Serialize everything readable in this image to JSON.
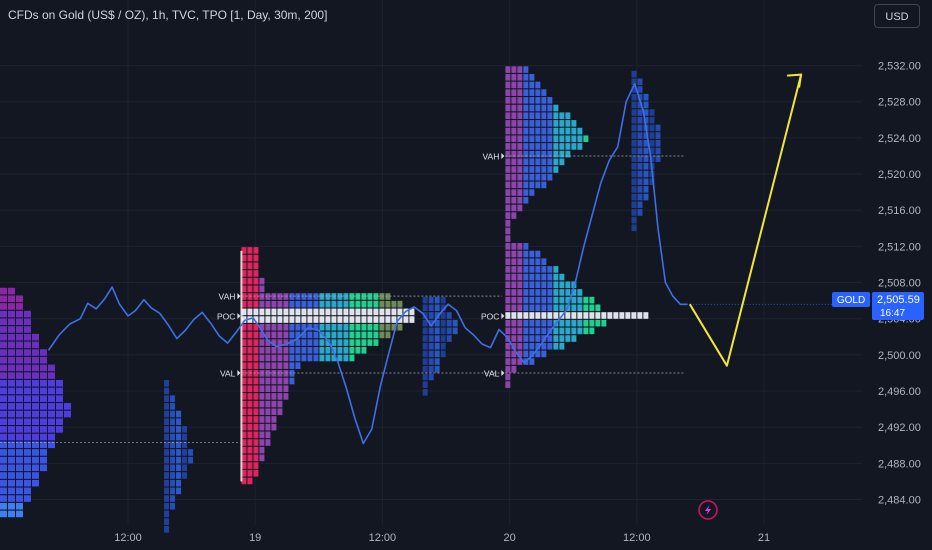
{
  "title": "CFDs on Gold (US$ / OZ), 1h, TVC, TPO [1, Day, 30m, 200]",
  "currency": "USD",
  "price_tag": {
    "symbol": "GOLD",
    "price": "2,505.59",
    "countdown": "16:47"
  },
  "colors": {
    "background": "#131722",
    "grid": "#1e222d",
    "price_line": "#3f6fe6",
    "projection": "#f0e63c",
    "poc_bar": "#e0e3eb",
    "tag_bg": "#2962ff",
    "axis_text": "#b2b5be"
  },
  "profile_labels": {
    "vah": "VAH",
    "poc": "POC",
    "val": "VAL"
  },
  "icons": [
    "lightning-logo-icon",
    "poc-arrow-icon"
  ],
  "chart_data": {
    "type": "line",
    "title": "CFDs on Gold (US$ / OZ)",
    "xlabel": "",
    "ylabel": "",
    "ylim": [
      2481.5,
      2534.5
    ],
    "yticks": [
      "2,532.00",
      "2,528.00",
      "2,524.00",
      "2,520.00",
      "2,516.00",
      "2,512.00",
      "2,508.00",
      "2,504.00",
      "2,500.00",
      "2,496.00",
      "2,492.00",
      "2,488.00",
      "2,484.00"
    ],
    "ytick_values": [
      2532,
      2528,
      2524,
      2520,
      2516,
      2512,
      2508,
      2504,
      2500,
      2496,
      2492,
      2488,
      2484
    ],
    "xticks": [
      "12:00",
      "19",
      "12:00",
      "20",
      "12:00",
      "21"
    ],
    "xtick_hours": [
      12,
      24,
      36,
      48,
      60,
      72
    ],
    "series": [
      {
        "x_hours": [
          4.5,
          5.5,
          6.5,
          7.5,
          8.2,
          9.0,
          9.8,
          10.5,
          11.2,
          12.0,
          12.7,
          13.5,
          14.2,
          15.0,
          15.8,
          16.6,
          17.4,
          18.2,
          19.0,
          19.8,
          20.6,
          21.4,
          22.2,
          23.0,
          23.8,
          24.5,
          25.2,
          26.0,
          27.0,
          28.0,
          29.0,
          30.0,
          31.0,
          31.8,
          32.6,
          33.4,
          34.2,
          35.0,
          35.8,
          36.6,
          37.4,
          38.2,
          39.0,
          39.8,
          40.6,
          41.4,
          42.2,
          43.0,
          43.8,
          44.6,
          45.4,
          46.2,
          47.0,
          47.8,
          48.6,
          49.4,
          50.2,
          51.0,
          51.8,
          52.6,
          53.4,
          54.2,
          55.0,
          55.8,
          56.6,
          57.4,
          58.2,
          59.0,
          59.8,
          60.6,
          61.3,
          62.0,
          62.7,
          63.4,
          64.1,
          64.8
        ],
        "y": [
          2500.5,
          2502.2,
          2503.4,
          2504.0,
          2505.7,
          2505.1,
          2506.2,
          2507.5,
          2505.6,
          2504.3,
          2504.9,
          2506.1,
          2505.2,
          2504.6,
          2503.3,
          2501.8,
          2502.7,
          2503.9,
          2504.7,
          2503.5,
          2502.1,
          2501.3,
          2502.5,
          2503.8,
          2504.1,
          2502.9,
          2501.6,
          2500.9,
          2501.2,
          2501.8,
          2503.0,
          2502.7,
          2501.4,
          2499.2,
          2496.3,
          2493.0,
          2490.2,
          2491.8,
          2496.5,
          2500.2,
          2503.7,
          2504.8,
          2505.3,
          2504.6,
          2503.2,
          2504.5,
          2505.6,
          2504.9,
          2503.0,
          2502.2,
          2501.2,
          2500.8,
          2502.8,
          2501.9,
          2500.3,
          2499.1,
          2500.0,
          2501.2,
          2502.6,
          2503.8,
          2505.0,
          2508.0,
          2512.0,
          2515.5,
          2519.0,
          2521.5,
          2523.0,
          2528.0,
          2530.0,
          2527.0,
          2522.0,
          2514.0,
          2508.0,
          2506.5,
          2505.59,
          2505.59
        ],
        "label": ""
      }
    ],
    "projection": {
      "x_hours": [
        65.0,
        68.5,
        75.5
      ],
      "y": [
        2505.6,
        2498.8,
        2531.0
      ]
    },
    "tpo_profiles": [
      {
        "vah": 2506.5,
        "poc": 2504.3,
        "val": 2498.0
      },
      {
        "vah": 2522.0,
        "poc": 2504.3,
        "val": 2498.0
      }
    ]
  }
}
